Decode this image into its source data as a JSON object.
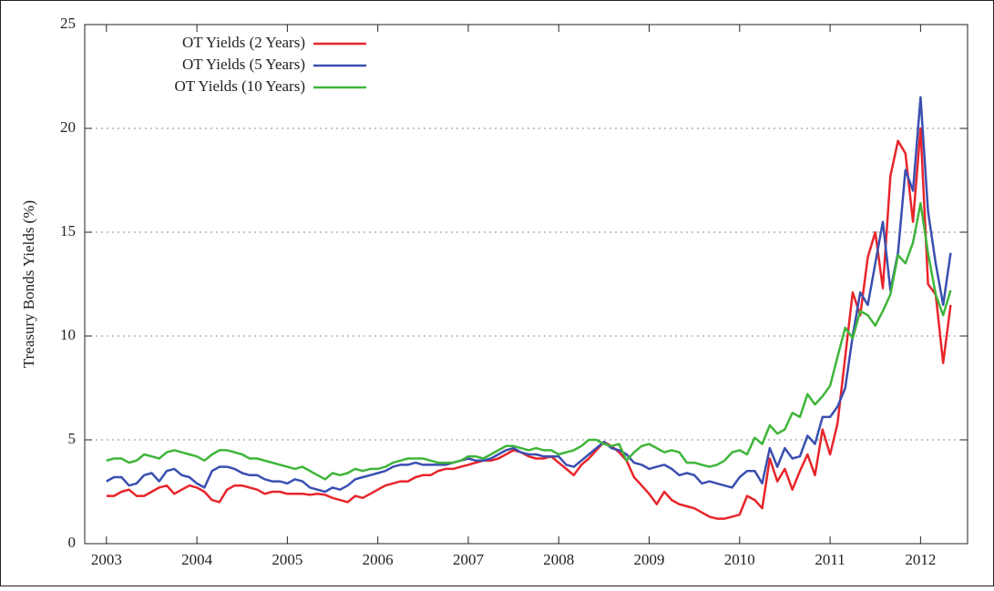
{
  "chart_data": {
    "type": "line",
    "ylabel": "Treasury Bonds Yields (%)",
    "x": [
      2003,
      2003.083,
      2003.167,
      2003.25,
      2003.333,
      2003.417,
      2003.5,
      2003.583,
      2003.667,
      2003.75,
      2003.833,
      2003.917,
      2004,
      2004.083,
      2004.167,
      2004.25,
      2004.333,
      2004.417,
      2004.5,
      2004.583,
      2004.667,
      2004.75,
      2004.833,
      2004.917,
      2005,
      2005.083,
      2005.167,
      2005.25,
      2005.333,
      2005.417,
      2005.5,
      2005.583,
      2005.667,
      2005.75,
      2005.833,
      2005.917,
      2006,
      2006.083,
      2006.167,
      2006.25,
      2006.333,
      2006.417,
      2006.5,
      2006.583,
      2006.667,
      2006.75,
      2006.833,
      2006.917,
      2007,
      2007.083,
      2007.167,
      2007.25,
      2007.333,
      2007.417,
      2007.5,
      2007.583,
      2007.667,
      2007.75,
      2007.833,
      2007.917,
      2008,
      2008.083,
      2008.167,
      2008.25,
      2008.333,
      2008.417,
      2008.5,
      2008.583,
      2008.667,
      2008.75,
      2008.833,
      2008.917,
      2009,
      2009.083,
      2009.167,
      2009.25,
      2009.333,
      2009.417,
      2009.5,
      2009.583,
      2009.667,
      2009.75,
      2009.833,
      2009.917,
      2010,
      2010.083,
      2010.167,
      2010.25,
      2010.333,
      2010.417,
      2010.5,
      2010.583,
      2010.667,
      2010.75,
      2010.833,
      2010.917,
      2011,
      2011.083,
      2011.167,
      2011.25,
      2011.333,
      2011.417,
      2011.5,
      2011.583,
      2011.667,
      2011.75,
      2011.833,
      2011.917,
      2012,
      2012.083,
      2012.167,
      2012.25,
      2012.333
    ],
    "series": [
      {
        "name": "OT Yields (2 Years)",
        "color": "#e8252b",
        "values": [
          2.3,
          2.3,
          2.5,
          2.6,
          2.3,
          2.3,
          2.5,
          2.7,
          2.8,
          2.4,
          2.6,
          2.8,
          2.7,
          2.5,
          2.1,
          2.0,
          2.6,
          2.8,
          2.8,
          2.7,
          2.6,
          2.4,
          2.5,
          2.5,
          2.4,
          2.4,
          2.4,
          2.35,
          2.4,
          2.35,
          2.2,
          2.1,
          2.0,
          2.3,
          2.2,
          2.4,
          2.6,
          2.8,
          2.9,
          3.0,
          3.0,
          3.2,
          3.3,
          3.3,
          3.5,
          3.6,
          3.6,
          3.7,
          3.8,
          3.9,
          4.0,
          4.0,
          4.1,
          4.3,
          4.5,
          4.4,
          4.2,
          4.1,
          4.1,
          4.2,
          3.9,
          3.6,
          3.3,
          3.8,
          4.1,
          4.5,
          4.9,
          4.7,
          4.4,
          4.0,
          3.2,
          2.8,
          2.4,
          1.9,
          2.5,
          2.1,
          1.9,
          1.8,
          1.7,
          1.5,
          1.3,
          1.2,
          1.2,
          1.3,
          1.4,
          2.3,
          2.1,
          1.7,
          4.1,
          3.0,
          3.6,
          2.6,
          3.5,
          4.3,
          3.3,
          5.5,
          4.3,
          5.8,
          9.0,
          12.1,
          11.0,
          13.8,
          15.0,
          12.3,
          17.7,
          19.4,
          18.8,
          15.5,
          20.0,
          12.5,
          12.0,
          8.7,
          11.5
        ]
      },
      {
        "name": "OT Yields (5 Years)",
        "color": "#3a4fb0",
        "values": [
          3.0,
          3.2,
          3.2,
          2.8,
          2.9,
          3.3,
          3.4,
          3.0,
          3.5,
          3.6,
          3.3,
          3.2,
          2.9,
          2.7,
          3.5,
          3.7,
          3.7,
          3.6,
          3.4,
          3.3,
          3.3,
          3.1,
          3.0,
          3.0,
          2.9,
          3.1,
          3.0,
          2.7,
          2.6,
          2.5,
          2.7,
          2.6,
          2.8,
          3.1,
          3.2,
          3.3,
          3.4,
          3.5,
          3.7,
          3.8,
          3.8,
          3.9,
          3.8,
          3.8,
          3.8,
          3.8,
          3.9,
          4.0,
          4.1,
          4.0,
          4.0,
          4.1,
          4.3,
          4.5,
          4.6,
          4.4,
          4.3,
          4.3,
          4.2,
          4.2,
          4.2,
          3.8,
          3.7,
          4.0,
          4.3,
          4.6,
          4.9,
          4.6,
          4.5,
          4.3,
          3.9,
          3.8,
          3.6,
          3.7,
          3.8,
          3.6,
          3.3,
          3.4,
          3.3,
          2.9,
          3.0,
          2.9,
          2.8,
          2.7,
          3.2,
          3.5,
          3.5,
          2.9,
          4.6,
          3.7,
          4.6,
          4.1,
          4.2,
          5.2,
          4.8,
          6.1,
          6.1,
          6.6,
          7.5,
          10.0,
          12.1,
          11.5,
          13.5,
          15.5,
          12.2,
          14.0,
          18.0,
          17.0,
          21.5,
          16.0,
          13.5,
          11.5,
          14.0
        ]
      },
      {
        "name": "OT Yields (10 Years)",
        "color": "#3fb53a",
        "values": [
          4.0,
          4.1,
          4.1,
          3.9,
          4.0,
          4.3,
          4.2,
          4.1,
          4.4,
          4.5,
          4.4,
          4.3,
          4.2,
          4.0,
          4.3,
          4.5,
          4.5,
          4.4,
          4.3,
          4.1,
          4.1,
          4.0,
          3.9,
          3.8,
          3.7,
          3.6,
          3.7,
          3.5,
          3.3,
          3.1,
          3.4,
          3.3,
          3.4,
          3.6,
          3.5,
          3.6,
          3.6,
          3.7,
          3.9,
          4.0,
          4.1,
          4.1,
          4.1,
          4.0,
          3.9,
          3.9,
          3.9,
          4.0,
          4.2,
          4.2,
          4.1,
          4.3,
          4.5,
          4.7,
          4.7,
          4.6,
          4.5,
          4.6,
          4.5,
          4.5,
          4.3,
          4.4,
          4.5,
          4.7,
          5.0,
          5.0,
          4.8,
          4.7,
          4.8,
          4.0,
          4.4,
          4.7,
          4.8,
          4.6,
          4.4,
          4.5,
          4.4,
          3.9,
          3.9,
          3.8,
          3.7,
          3.8,
          4.0,
          4.4,
          4.5,
          4.3,
          5.1,
          4.8,
          5.7,
          5.3,
          5.5,
          6.3,
          6.1,
          7.2,
          6.7,
          7.1,
          7.6,
          9.0,
          10.4,
          9.9,
          11.2,
          11.0,
          10.5,
          11.2,
          12.0,
          13.9,
          13.5,
          14.5,
          16.4,
          14.0,
          12.0,
          11.0,
          12.2
        ]
      }
    ],
    "xlim": [
      2002.76,
      2012.52
    ],
    "ylim": [
      0,
      25
    ],
    "xticks": [
      2003,
      2004,
      2005,
      2006,
      2007,
      2008,
      2009,
      2010,
      2011,
      2012
    ],
    "yticks": [
      0,
      5,
      10,
      15,
      20,
      25
    ],
    "grid": true,
    "legend": "upper-left"
  }
}
